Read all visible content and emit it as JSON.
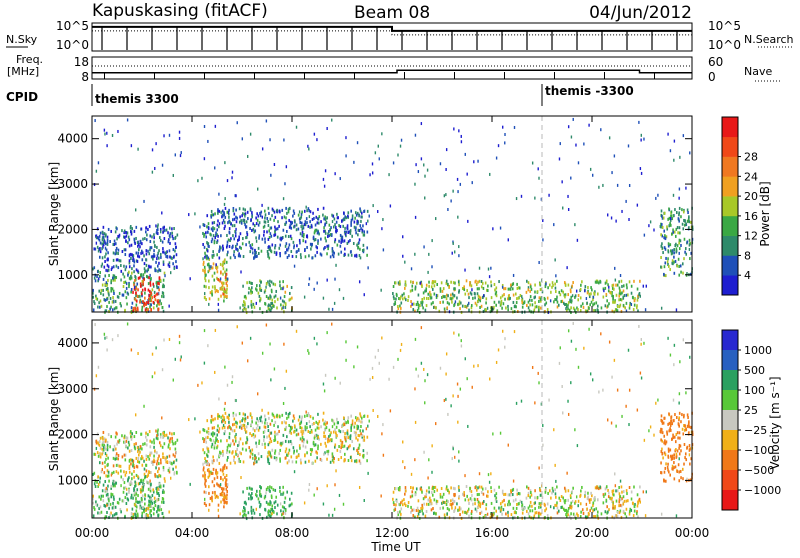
{
  "header": {
    "station": "Kapuskasing (fitACF)",
    "beam": "Beam 08",
    "date": "04/Jun/2012"
  },
  "noise_panel": {
    "left_label": "N.Sky",
    "right_label": "N.Search",
    "left_ticks": [
      "10^5",
      "10^0"
    ],
    "right_ticks": [
      "10^5",
      "10^0"
    ]
  },
  "freq_panel": {
    "left_label_1": "Freq.",
    "left_label_2": "[MHz]",
    "right_label": "Nave",
    "left_ticks": [
      "18",
      "8"
    ],
    "right_ticks": [
      "60",
      "0"
    ]
  },
  "cpid": {
    "label": "CPID",
    "segments": [
      {
        "text": "themis 3300",
        "start_hour": 0
      },
      {
        "text": "themis -3300",
        "start_hour": 18
      }
    ]
  },
  "power_panel": {
    "ylabel": "Slant Range [km]",
    "yticks": [
      "1000",
      "2000",
      "3000",
      "4000"
    ],
    "colorbar_title": "Power [dB]",
    "colorbar_ticks": [
      "4",
      "8",
      "12",
      "16",
      "20",
      "24",
      "28"
    ],
    "colors": [
      "#1e1ed0",
      "#1f50b8",
      "#2e8a6a",
      "#3aa844",
      "#a8c828",
      "#f0a020",
      "#f07820",
      "#f04818",
      "#e81818"
    ]
  },
  "velocity_panel": {
    "ylabel": "Slant Range [km]",
    "yticks": [
      "1000",
      "2000",
      "3000",
      "4000"
    ],
    "colorbar_title": "Velocity [m s⁻¹]",
    "colorbar_ticks": [
      "1000",
      "500",
      "100",
      "25",
      "−25",
      "−100",
      "−500",
      "−1000"
    ],
    "colors": [
      "#2828d0",
      "#2860c0",
      "#2aa060",
      "#58c838",
      "#c8c8c0",
      "#f0b018",
      "#f07818",
      "#f04818",
      "#e81818"
    ]
  },
  "xaxis": {
    "label": "Time UT",
    "ticks": [
      "00:00",
      "04:00",
      "08:00",
      "12:00",
      "16:00",
      "20:00",
      "00:00"
    ]
  },
  "chart_data": {
    "type": "heatmap",
    "title": "Kapuskasing (fitACF) Beam 08 04/Jun/2012",
    "xlabel": "Time UT",
    "ylabel": "Slant Range [km]",
    "xlim": [
      0,
      24
    ],
    "ylim": [
      180,
      4500
    ],
    "power_range_dB": [
      0,
      30
    ],
    "velocity_range": [
      -1000,
      1000
    ],
    "scatter_regions": [
      {
        "start_hour": 0.0,
        "end_hour": 2.9,
        "range_km": [
          200,
          1100
        ],
        "power_dB": 10,
        "velocity": 100
      },
      {
        "start_hour": 1.6,
        "end_hour": 2.7,
        "range_km": [
          200,
          1000
        ],
        "power_dB": 26,
        "velocity": 40
      },
      {
        "start_hour": 0.0,
        "end_hour": 3.4,
        "range_km": [
          1100,
          2100
        ],
        "power_dB": 5,
        "velocity": 0
      },
      {
        "start_hour": 4.4,
        "end_hour": 5.4,
        "range_km": [
          400,
          1400
        ],
        "power_dB": 14,
        "velocity": -150
      },
      {
        "start_hour": 5.0,
        "end_hour": 5.4,
        "range_km": [
          500,
          1100
        ],
        "power_dB": 20,
        "velocity": -200
      },
      {
        "start_hour": 4.4,
        "end_hour": 11.0,
        "range_km": [
          1400,
          2500
        ],
        "power_dB": 6,
        "velocity": 10
      },
      {
        "start_hour": 6.0,
        "end_hour": 8.0,
        "range_km": [
          200,
          900
        ],
        "power_dB": 12,
        "velocity": 150
      },
      {
        "start_hour": 12.0,
        "end_hour": 21.9,
        "range_km": [
          200,
          900
        ],
        "power_dB": 13,
        "velocity": 0
      },
      {
        "start_hour": 22.7,
        "end_hour": 24.0,
        "range_km": [
          1000,
          2500
        ],
        "power_dB": 10,
        "velocity": -200
      }
    ],
    "noise_sky_log10": [
      {
        "start_hour": 0,
        "end_hour": 12,
        "value": 4.3
      },
      {
        "start_hour": 12,
        "end_hour": 24,
        "value": 3.6
      }
    ],
    "frequency_MHz": [
      {
        "start_hour": 0,
        "end_hour": 12.2,
        "value": 10.5
      },
      {
        "start_hour": 12.2,
        "end_hour": 21.9,
        "value": 12.4
      },
      {
        "start_hour": 21.9,
        "end_hour": 24,
        "value": 10.5
      }
    ]
  }
}
